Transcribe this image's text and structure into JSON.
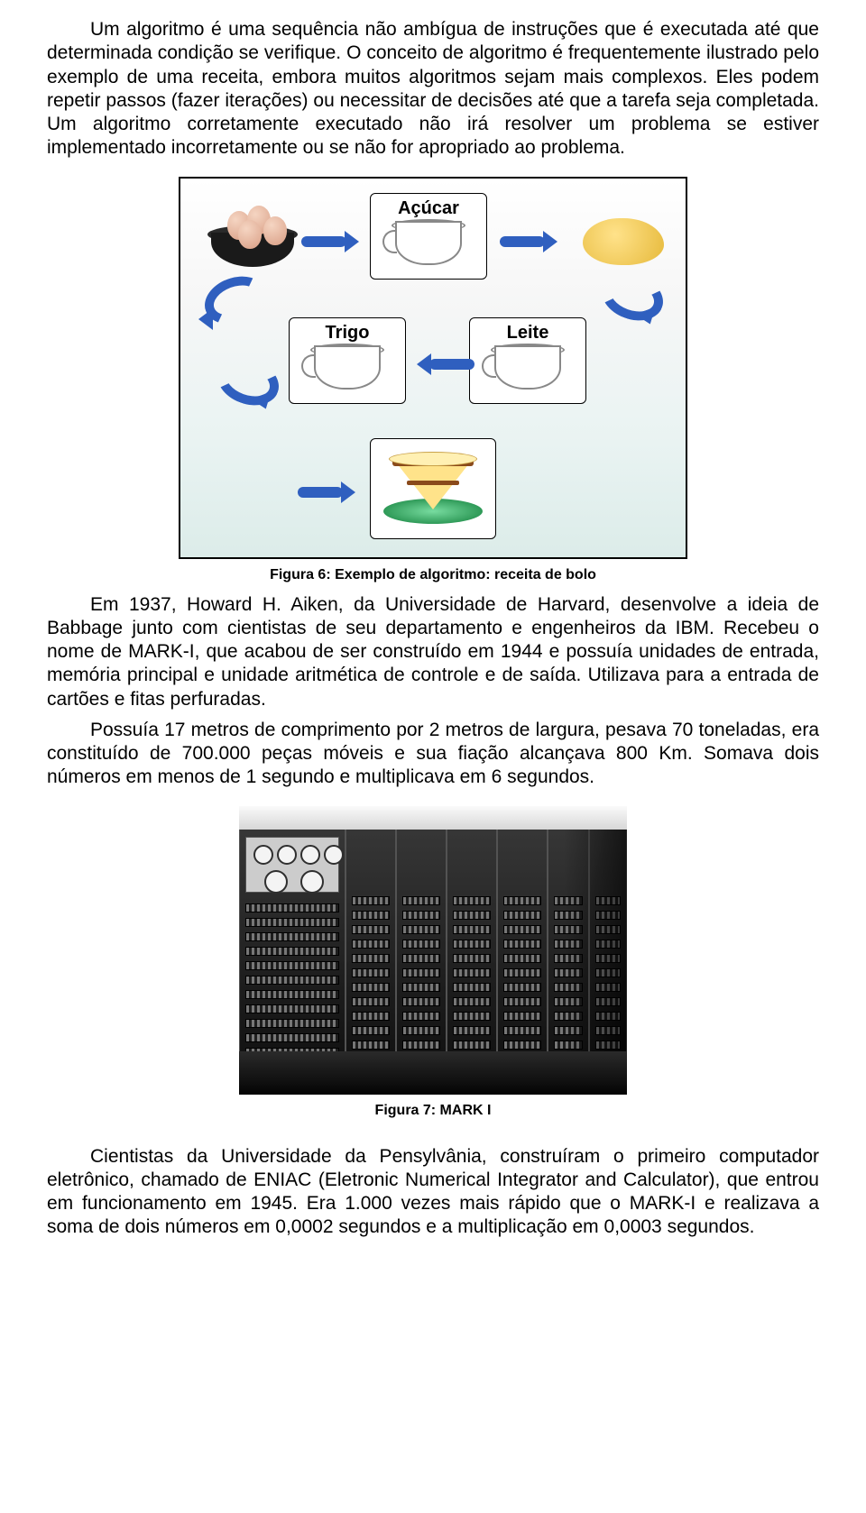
{
  "paragraphs": {
    "p1": "Um algoritmo é uma sequência não ambígua de instruções que é executada até que determinada condição se verifique. O conceito de algoritmo é frequentemente ilustrado pelo exemplo de uma receita, embora muitos algoritmos sejam mais complexos. Eles podem repetir passos (fazer iterações) ou necessitar de decisões até que a tarefa seja completada. Um algoritmo corretamente executado não irá resolver um problema se estiver implementado incorretamente ou se não for apropriado ao problema.",
    "p2a": "Em 1937, Howard H. Aiken, da Universidade de Harvard, desenvolve a ideia de Babbage junto com cientistas de seu departamento e engenheiros da IBM. Recebeu o nome de MARK-I, que acabou de ser construído em 1944 e possuía unidades de entrada, memória principal e unidade aritmética de controle e de saída. Utilizava para a entrada de cartões e fitas perfuradas.",
    "p2b": "Possuía 17 metros de comprimento por 2 metros de largura, pesava 70 toneladas, era constituído de 700.000 peças móveis e sua fiação alcançava 800 Km. Somava dois números em menos de 1 segundo e multiplicava em 6 segundos.",
    "p3": "Cientistas da Universidade da Pensylvânia, construíram o primeiro computador eletrônico, chamado de ENIAC (Eletronic Numerical Integrator and Calculator), que entrou em funcionamento em 1945.  Era 1.000 vezes mais rápido que o MARK-I e realizava a soma de dois números em 0,0002 segundos e a multiplicação em 0,0003 segundos."
  },
  "fig6": {
    "caption": "Figura 6: Exemplo de algoritmo: receita de bolo",
    "labels": {
      "acucar": "Açúcar",
      "trigo": "Trigo",
      "leite": "Leite"
    },
    "arrow_color": "#2f5fbf",
    "border_color": "#000000",
    "bg_gradient_from": "#ffffff",
    "bg_gradient_to": "#dcece9"
  },
  "fig7": {
    "caption": "Figura 7: MARK I"
  }
}
